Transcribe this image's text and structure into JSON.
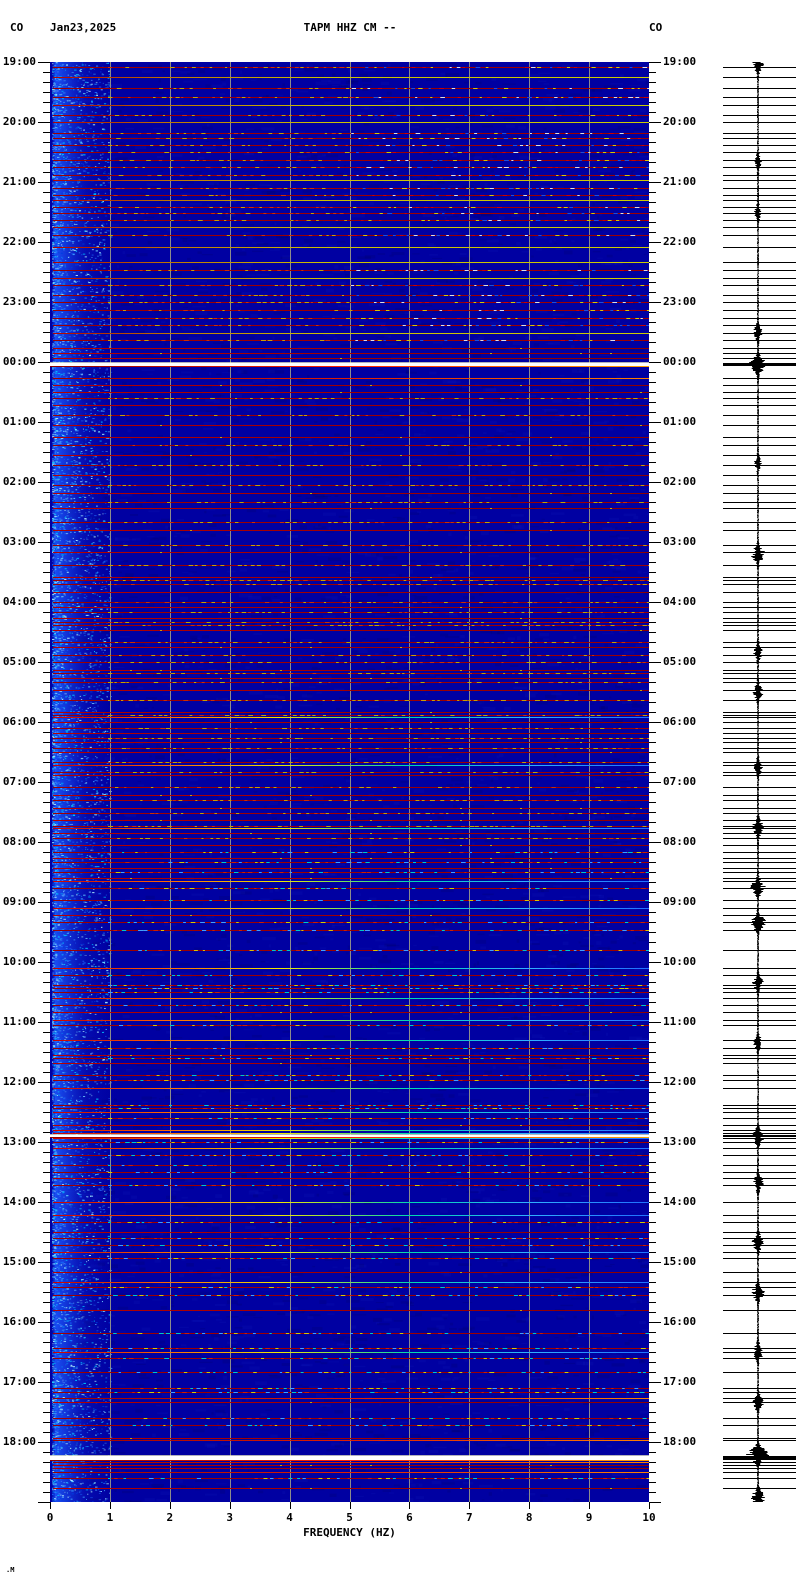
{
  "header": {
    "network_left": "CO",
    "date": "Jan23,2025",
    "title": "TAPM HHZ CM --",
    "network_right": "CO"
  },
  "footer": {
    "mark": ".M"
  },
  "axes": {
    "left_time_labels": [
      "19:00",
      "20:00",
      "21:00",
      "22:00",
      "23:00",
      "00:00",
      "01:00",
      "02:00",
      "03:00",
      "04:00",
      "05:00",
      "06:00",
      "07:00",
      "08:00",
      "09:00",
      "10:00",
      "11:00",
      "12:00",
      "13:00",
      "14:00",
      "15:00",
      "16:00",
      "17:00",
      "18:00"
    ],
    "right_time_labels": [
      "19:00",
      "20:00",
      "21:00",
      "22:00",
      "23:00",
      "00:00",
      "01:00",
      "02:00",
      "03:00",
      "04:00",
      "05:00",
      "06:00",
      "07:00",
      "08:00",
      "09:00",
      "10:00",
      "11:00",
      "12:00",
      "13:00",
      "14:00",
      "15:00",
      "16:00",
      "17:00",
      "18:00"
    ],
    "freq_tick_labels": [
      "0",
      "1",
      "2",
      "3",
      "4",
      "5",
      "6",
      "7",
      "8",
      "9",
      "10"
    ],
    "freq_axis_title": "FREQUENCY (HZ)",
    "minor_tick_minutes": 10
  },
  "colors": {
    "page_bg": "#FFFFFF",
    "spectrogram_bg": "#0000A2",
    "gridline": "#8C8C8C",
    "text": "#000000",
    "microseism_band": "#2060FF",
    "event_red": "#A00000",
    "event_yellow": "#CCCC00",
    "event_cyan": "#00D8B0",
    "event_orange": "#FF8000",
    "event_white": "#FFFFFF",
    "trace": "#000000"
  },
  "chart_data": {
    "type": "heatmap",
    "title": "TAPM HHZ CM --",
    "xlabel": "FREQUENCY (HZ)",
    "x_range_hz": [
      0,
      10
    ],
    "gridlines_hz": [
      1,
      2,
      3,
      4,
      5,
      6,
      7,
      8,
      9
    ],
    "time_start_label": "19:00",
    "hours_span": 24,
    "row_minutes": 1,
    "noise_band_hz": [
      0.05,
      0.5
    ],
    "event_types": {
      "r": "solid dark-red narrowband line",
      "d": "dashed red line with yellow/blue dots",
      "y": "red-to-yellow solid line",
      "g": "bright red-yellow-cyan gradient line",
      "o": "red-to-orange bright line",
      "W": "white broadband burst"
    },
    "events": [
      [
        "19:05",
        "d"
      ],
      [
        "19:15",
        "y"
      ],
      [
        "19:26",
        "d"
      ],
      [
        "19:35",
        "d"
      ],
      [
        "19:43",
        "y"
      ],
      [
        "19:53",
        "d"
      ],
      [
        "20:00",
        "y"
      ],
      [
        "20:11",
        "d"
      ],
      [
        "20:16",
        "d"
      ],
      [
        "20:23",
        "d"
      ],
      [
        "20:30",
        "d"
      ],
      [
        "20:38",
        "d"
      ],
      [
        "20:45",
        "d"
      ],
      [
        "20:53",
        "d"
      ],
      [
        "20:58",
        "y"
      ],
      [
        "21:06",
        "d"
      ],
      [
        "21:13",
        "d"
      ],
      [
        "21:18",
        "y"
      ],
      [
        "21:25",
        "d"
      ],
      [
        "21:31",
        "d"
      ],
      [
        "21:38",
        "d"
      ],
      [
        "21:45",
        "y"
      ],
      [
        "21:53",
        "d"
      ],
      [
        "22:05",
        "y"
      ],
      [
        "22:20",
        "y"
      ],
      [
        "22:28",
        "d"
      ],
      [
        "22:36",
        "y"
      ],
      [
        "22:43",
        "d"
      ],
      [
        "22:53",
        "d"
      ],
      [
        "23:00",
        "d"
      ],
      [
        "23:08",
        "d"
      ],
      [
        "23:16",
        "d"
      ],
      [
        "23:23",
        "d"
      ],
      [
        "23:31",
        "y"
      ],
      [
        "23:38",
        "d"
      ],
      [
        "23:46",
        "r"
      ],
      [
        "23:51",
        "r"
      ],
      [
        "23:56",
        "r"
      ],
      [
        "00:16",
        "o"
      ],
      [
        "00:23",
        "r"
      ],
      [
        "00:30",
        "r"
      ],
      [
        "00:36",
        "d"
      ],
      [
        "00:43",
        "r"
      ],
      [
        "00:53",
        "d"
      ],
      [
        "01:03",
        "r"
      ],
      [
        "01:15",
        "r"
      ],
      [
        "01:23",
        "d"
      ],
      [
        "01:33",
        "r"
      ],
      [
        "01:43",
        "d"
      ],
      [
        "01:53",
        "r"
      ],
      [
        "02:03",
        "d"
      ],
      [
        "02:11",
        "r"
      ],
      [
        "02:20",
        "d"
      ],
      [
        "02:26",
        "r"
      ],
      [
        "02:40",
        "d"
      ],
      [
        "02:48",
        "r"
      ],
      [
        "03:03",
        "d"
      ],
      [
        "03:10",
        "r"
      ],
      [
        "03:23",
        "d"
      ],
      [
        "03:35",
        "r"
      ],
      [
        "03:38",
        "d"
      ],
      [
        "03:42",
        "d"
      ],
      [
        "03:50",
        "r"
      ],
      [
        "04:00",
        "d"
      ],
      [
        "04:05",
        "r"
      ],
      [
        "04:10",
        "d"
      ],
      [
        "04:16",
        "r"
      ],
      [
        "04:20",
        "d"
      ],
      [
        "04:23",
        "d"
      ],
      [
        "04:28",
        "r"
      ],
      [
        "04:40",
        "d"
      ],
      [
        "04:45",
        "r"
      ],
      [
        "04:53",
        "d"
      ],
      [
        "05:00",
        "d"
      ],
      [
        "05:08",
        "r"
      ],
      [
        "05:11",
        "d"
      ],
      [
        "05:16",
        "r"
      ],
      [
        "05:20",
        "d"
      ],
      [
        "05:28",
        "r"
      ],
      [
        "05:38",
        "d"
      ],
      [
        "05:50",
        "r"
      ],
      [
        "05:53",
        "d"
      ],
      [
        "05:55",
        "g"
      ],
      [
        "06:00",
        "r"
      ],
      [
        "06:06",
        "d"
      ],
      [
        "06:11",
        "r"
      ],
      [
        "06:16",
        "d"
      ],
      [
        "06:20",
        "r"
      ],
      [
        "06:26",
        "d"
      ],
      [
        "06:30",
        "r"
      ],
      [
        "06:40",
        "d"
      ],
      [
        "06:43",
        "g"
      ],
      [
        "06:50",
        "d"
      ],
      [
        "06:53",
        "r"
      ],
      [
        "07:05",
        "d"
      ],
      [
        "07:13",
        "r"
      ],
      [
        "07:18",
        "d"
      ],
      [
        "07:26",
        "r"
      ],
      [
        "07:31",
        "d"
      ],
      [
        "07:38",
        "r"
      ],
      [
        "07:44",
        "d"
      ],
      [
        "07:46",
        "g"
      ],
      [
        "07:51",
        "r"
      ],
      [
        "07:56",
        "d"
      ],
      [
        "08:03",
        "r"
      ],
      [
        "08:10",
        "d"
      ],
      [
        "08:16",
        "r"
      ],
      [
        "08:20",
        "d"
      ],
      [
        "08:26",
        "r"
      ],
      [
        "08:30",
        "d"
      ],
      [
        "08:36",
        "r"
      ],
      [
        "08:39",
        "g"
      ],
      [
        "08:46",
        "d"
      ],
      [
        "08:58",
        "d"
      ],
      [
        "09:06",
        "g"
      ],
      [
        "09:13",
        "r"
      ],
      [
        "09:20",
        "d"
      ],
      [
        "09:28",
        "d"
      ],
      [
        "09:48",
        "d"
      ],
      [
        "10:06",
        "g"
      ],
      [
        "10:13",
        "d"
      ],
      [
        "10:23",
        "d"
      ],
      [
        "10:26",
        "d"
      ],
      [
        "10:30",
        "d"
      ],
      [
        "10:36",
        "g"
      ],
      [
        "10:43",
        "d"
      ],
      [
        "10:50",
        "r"
      ],
      [
        "10:58",
        "g"
      ],
      [
        "11:03",
        "d"
      ],
      [
        "11:18",
        "g"
      ],
      [
        "11:26",
        "d"
      ],
      [
        "11:33",
        "r"
      ],
      [
        "11:36",
        "d"
      ],
      [
        "11:41",
        "r"
      ],
      [
        "11:53",
        "d"
      ],
      [
        "11:58",
        "d"
      ],
      [
        "12:06",
        "g"
      ],
      [
        "12:23",
        "d"
      ],
      [
        "12:26",
        "d"
      ],
      [
        "12:30",
        "g"
      ],
      [
        "12:36",
        "d"
      ],
      [
        "12:43",
        "r"
      ],
      [
        "12:48",
        "g"
      ],
      [
        "12:51",
        "g"
      ],
      [
        "12:56",
        "g"
      ],
      [
        "13:00",
        "d"
      ],
      [
        "13:06",
        "g"
      ],
      [
        "13:13",
        "d"
      ],
      [
        "13:23",
        "d"
      ],
      [
        "13:30",
        "d"
      ],
      [
        "13:36",
        "r"
      ],
      [
        "13:43",
        "d"
      ],
      [
        "14:00",
        "g"
      ],
      [
        "14:13",
        "g"
      ],
      [
        "14:20",
        "d"
      ],
      [
        "14:30",
        "r"
      ],
      [
        "14:36",
        "d"
      ],
      [
        "14:43",
        "d"
      ],
      [
        "14:50",
        "g"
      ],
      [
        "14:56",
        "d"
      ],
      [
        "15:10",
        "r"
      ],
      [
        "15:20",
        "g"
      ],
      [
        "15:25",
        "d"
      ],
      [
        "15:33",
        "d"
      ],
      [
        "15:48",
        "r"
      ],
      [
        "16:11",
        "d"
      ],
      [
        "16:26",
        "d"
      ],
      [
        "16:30",
        "g"
      ],
      [
        "16:36",
        "d"
      ],
      [
        "16:50",
        "d"
      ],
      [
        "17:06",
        "d"
      ],
      [
        "17:10",
        "d"
      ],
      [
        "17:16",
        "o"
      ],
      [
        "17:20",
        "r"
      ],
      [
        "17:36",
        "d"
      ],
      [
        "17:43",
        "d"
      ],
      [
        "17:56",
        "r"
      ],
      [
        "17:58",
        "o"
      ],
      [
        "18:20",
        "o"
      ],
      [
        "18:23",
        "r"
      ],
      [
        "18:26",
        "r"
      ],
      [
        "18:30",
        "o"
      ],
      [
        "18:36",
        "d"
      ],
      [
        "18:46",
        "r"
      ]
    ],
    "white_events": [
      [
        "00:02",
        3
      ],
      [
        "12:54",
        2
      ],
      [
        "18:15",
        4
      ]
    ],
    "trace_bursts": [
      [
        "19:02",
        5
      ],
      [
        "20:40",
        3
      ],
      [
        "21:30",
        3
      ],
      [
        "23:30",
        4
      ],
      [
        "00:02",
        9
      ],
      [
        "01:40",
        3
      ],
      [
        "03:12",
        7
      ],
      [
        "04:50",
        4
      ],
      [
        "05:30",
        5
      ],
      [
        "06:45",
        4
      ],
      [
        "07:45",
        6
      ],
      [
        "08:45",
        7
      ],
      [
        "09:20",
        8
      ],
      [
        "10:20",
        5
      ],
      [
        "11:20",
        4
      ],
      [
        "12:54",
        6
      ],
      [
        "13:40",
        5
      ],
      [
        "14:40",
        6
      ],
      [
        "15:30",
        6
      ],
      [
        "16:30",
        5
      ],
      [
        "17:20",
        5
      ],
      [
        "18:12",
        11
      ],
      [
        "18:55",
        7
      ]
    ]
  }
}
